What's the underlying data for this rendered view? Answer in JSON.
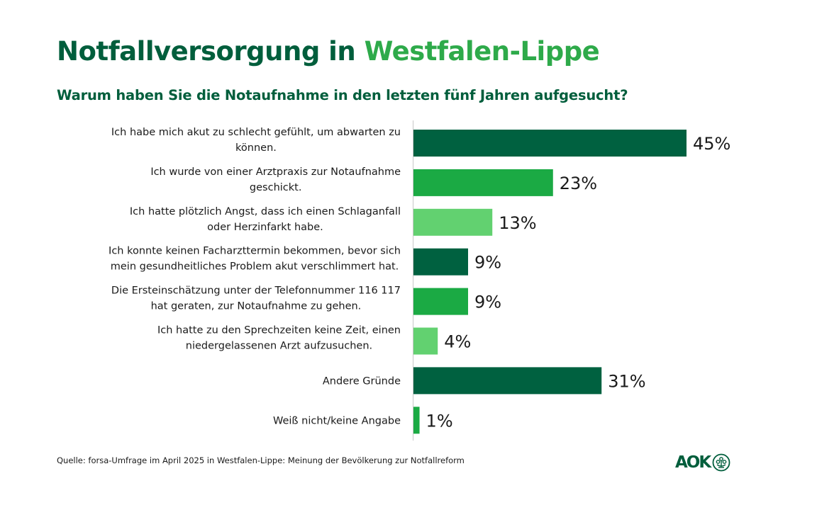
{
  "header": {
    "title_part1": "Notfallversorgung in",
    "title_part2": "Westfalen-Lippe",
    "subtitle": "Warum haben Sie die Notaufnahme in den letzten fünf Jahren aufgesucht?"
  },
  "colors": {
    "dark_green": "#006140",
    "mid_green": "#1baa44",
    "light_green": "#62d170",
    "title_dark": "#005e3c",
    "title_light": "#2eaa4a",
    "axis": "#c8c8c8"
  },
  "chart_data": {
    "type": "bar",
    "orientation": "horizontal",
    "title": "Notfallversorgung in Westfalen-Lippe",
    "subtitle": "Warum haben Sie die Notaufnahme in den letzten fünf Jahren aufgesucht?",
    "xlabel": "",
    "ylabel": "",
    "unit": "%",
    "xlim": [
      0,
      50
    ],
    "grid": false,
    "legend": "none",
    "categories": [
      [
        "Ich habe mich akut zu schlecht gefühlt, um abwarten zu",
        "können."
      ],
      [
        "Ich wurde von einer Arztpraxis zur Notaufnahme",
        "geschickt."
      ],
      [
        "Ich hatte plötzlich Angst, dass ich einen Schlaganfall",
        "oder Herzinfarkt habe."
      ],
      [
        "Ich konnte keinen Facharzttermin bekommen, bevor sich",
        "mein gesundheitliches Problem akut verschlimmert hat."
      ],
      [
        "Die Ersteinschätzung unter der Telefonnummer 116 117",
        "hat geraten, zur Notaufnahme zu gehen."
      ],
      [
        "Ich hatte zu den Sprechzeiten keine Zeit, einen",
        "niedergelassenen Arzt aufzusuchen."
      ],
      [
        "Andere Gründe"
      ],
      [
        "Weiß nicht/keine Angabe"
      ]
    ],
    "values": [
      45,
      23,
      13,
      9,
      9,
      4,
      31,
      1
    ],
    "value_labels": [
      "45%",
      "23%",
      "13%",
      "9%",
      "9%",
      "4%",
      "31%",
      "1%"
    ],
    "bar_colors": [
      "dark_green",
      "mid_green",
      "light_green",
      "dark_green",
      "mid_green",
      "light_green",
      "dark_green",
      "mid_green"
    ]
  },
  "footer": {
    "source": "Quelle: forsa-Umfrage im April 2025 in Westfalen-Lippe: Meinung der Bevölkerung zur Notfallreform",
    "logo_text": "AOK",
    "logo_icon": "tree-in-circle-icon"
  }
}
